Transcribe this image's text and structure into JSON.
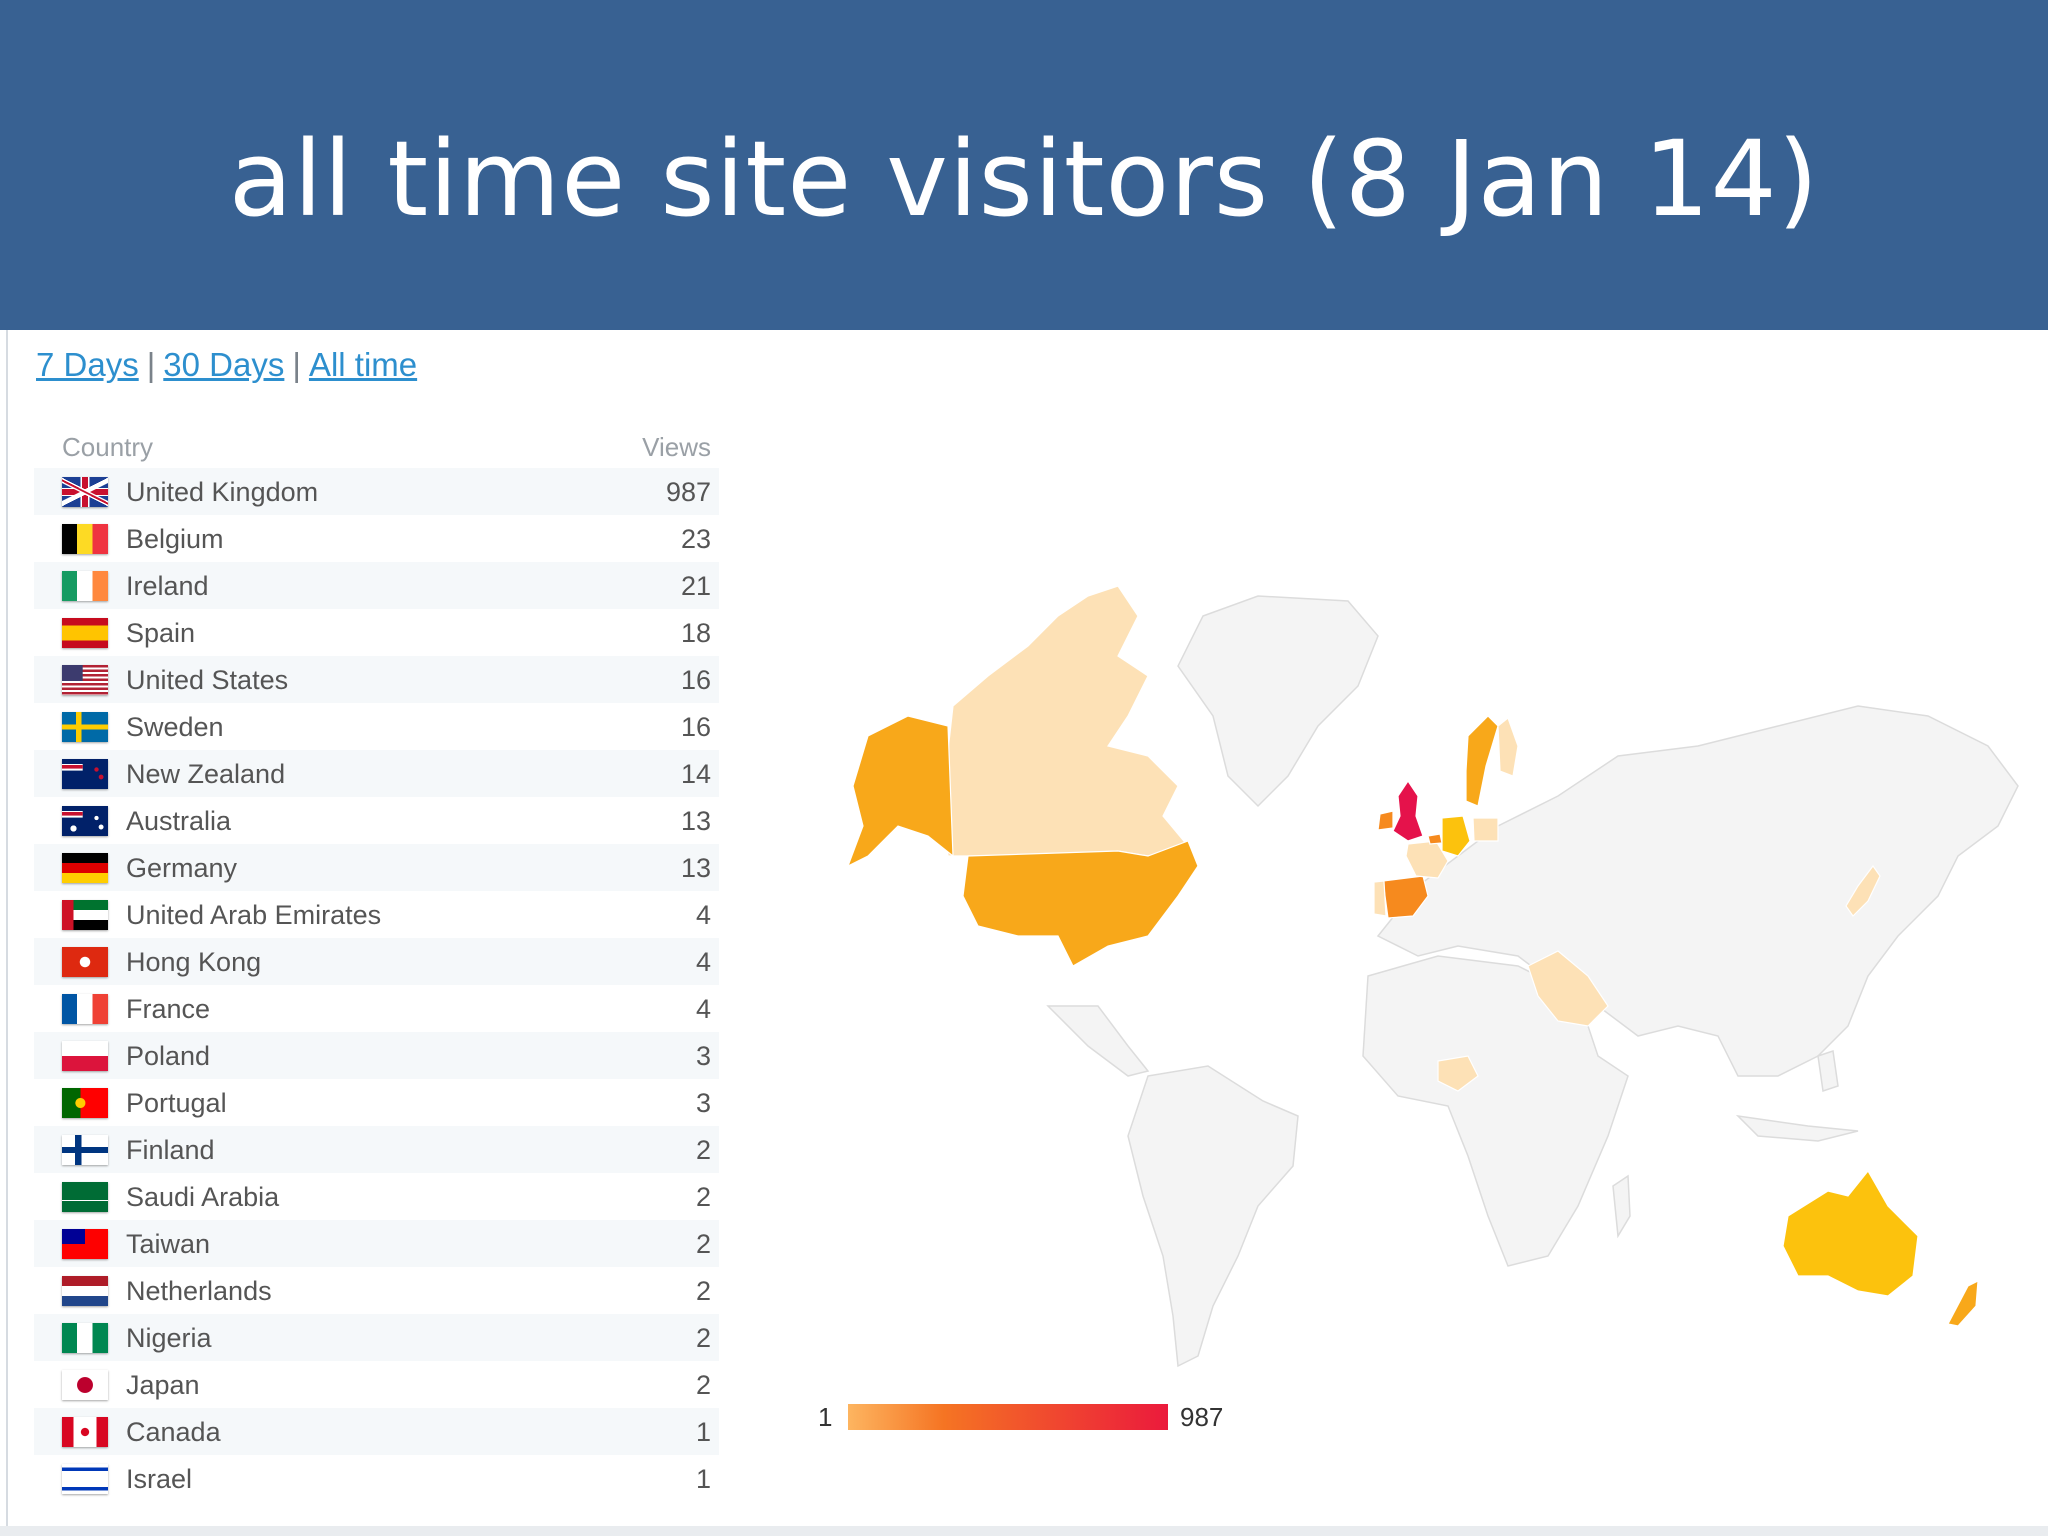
{
  "slide": {
    "title": "all time site visitors (8 Jan 14)"
  },
  "range_links": [
    {
      "label": "7 Days"
    },
    {
      "label": "30 Days"
    },
    {
      "label": "All time"
    }
  ],
  "range_separator": "|",
  "table": {
    "col_country": "Country",
    "col_views": "Views",
    "rows": [
      {
        "country": "United Kingdom",
        "views": "987"
      },
      {
        "country": "Belgium",
        "views": "23"
      },
      {
        "country": "Ireland",
        "views": "21"
      },
      {
        "country": "Spain",
        "views": "18"
      },
      {
        "country": "United States",
        "views": "16"
      },
      {
        "country": "Sweden",
        "views": "16"
      },
      {
        "country": "New Zealand",
        "views": "14"
      },
      {
        "country": "Australia",
        "views": "13"
      },
      {
        "country": "Germany",
        "views": "13"
      },
      {
        "country": "United Arab Emirates",
        "views": "4"
      },
      {
        "country": "Hong Kong",
        "views": "4"
      },
      {
        "country": "France",
        "views": "4"
      },
      {
        "country": "Poland",
        "views": "3"
      },
      {
        "country": "Portugal",
        "views": "3"
      },
      {
        "country": "Finland",
        "views": "2"
      },
      {
        "country": "Saudi Arabia",
        "views": "2"
      },
      {
        "country": "Taiwan",
        "views": "2"
      },
      {
        "country": "Netherlands",
        "views": "2"
      },
      {
        "country": "Nigeria",
        "views": "2"
      },
      {
        "country": "Japan",
        "views": "2"
      },
      {
        "country": "Canada",
        "views": "1"
      },
      {
        "country": "Israel",
        "views": "1"
      }
    ]
  },
  "legend": {
    "min": "1",
    "max": "987"
  },
  "colors": {
    "banner": "#386192",
    "link": "#2d8fce",
    "max": "#e5124b",
    "high": "#f68a1e",
    "mid": "#f8a81a",
    "low": "#fcc20d",
    "lowest": "#fde1b6",
    "no_data": "#f4f4f4"
  }
}
